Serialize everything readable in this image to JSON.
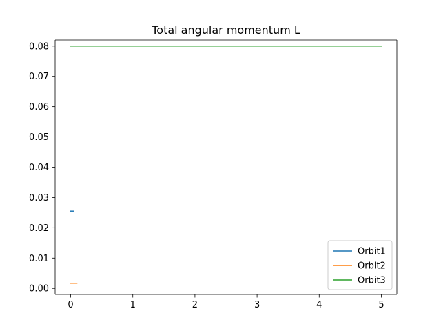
{
  "chart_data": {
    "type": "line",
    "title": "Total angular momentum L",
    "xlabel": "",
    "ylabel": "",
    "xlim": [
      -0.25,
      5.25
    ],
    "ylim": [
      -0.002,
      0.082
    ],
    "xticks": [
      0,
      1,
      2,
      3,
      4,
      5
    ],
    "xtick_labels": [
      "0",
      "1",
      "2",
      "3",
      "4",
      "5"
    ],
    "yticks": [
      0.0,
      0.01,
      0.02,
      0.03,
      0.04,
      0.05,
      0.06,
      0.07,
      0.08
    ],
    "ytick_labels": [
      "0.00",
      "0.01",
      "0.02",
      "0.03",
      "0.04",
      "0.05",
      "0.06",
      "0.07",
      "0.08"
    ],
    "grid": false,
    "legend_position": "lower-right",
    "series": [
      {
        "name": "Orbit1",
        "color": "#1f77b4",
        "x": [
          0,
          0.05
        ],
        "y": [
          0.0255,
          0.0255
        ]
      },
      {
        "name": "Orbit2",
        "color": "#ff7f0e",
        "x": [
          0,
          0.1
        ],
        "y": [
          0.0017,
          0.0017
        ]
      },
      {
        "name": "Orbit3",
        "color": "#2ca02c",
        "x": [
          0,
          5
        ],
        "y": [
          0.08,
          0.08
        ]
      }
    ]
  }
}
